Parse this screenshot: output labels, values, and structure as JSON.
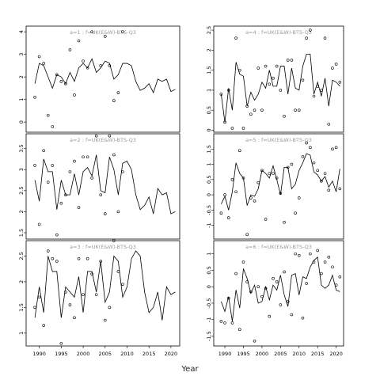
{
  "figure": {
    "xlabel": "Year"
  },
  "chart_data": [
    {
      "type": "line",
      "title": "a=1 :  f=UK(E&W)-BTS-Q3",
      "xlim": [
        1987,
        2022
      ],
      "ylim": [
        -0.45,
        4.25
      ],
      "yticks": [
        0,
        1,
        2,
        3,
        4
      ],
      "xticks": [
        1990,
        1995,
        2000,
        2005,
        2010,
        2015,
        2020
      ],
      "line": {
        "x": [
          1989,
          1990,
          1991,
          1992,
          1993,
          1994,
          1995,
          1996,
          1997,
          1998,
          1999,
          2000,
          2001,
          2002,
          2003,
          2004,
          2005,
          2006,
          2007,
          2008,
          2009,
          2010,
          2011,
          2012,
          2013,
          2014,
          2015,
          2016,
          2017,
          2018,
          2019,
          2020,
          2021
        ],
        "y": [
          1.7,
          2.6,
          2.5,
          2.0,
          1.5,
          2.1,
          2.0,
          1.7,
          2.2,
          1.8,
          2.4,
          2.6,
          2.4,
          2.8,
          2.2,
          2.4,
          2.7,
          2.6,
          1.9,
          2.1,
          2.6,
          2.6,
          2.5,
          1.8,
          1.4,
          1.5,
          1.7,
          1.3,
          1.9,
          1.8,
          1.9,
          1.35,
          1.45
        ]
      },
      "points": {
        "x": [
          1989,
          1990,
          1991,
          1992,
          1993,
          1994,
          1995,
          1996,
          1997,
          1998,
          1999,
          2000,
          2001,
          2002,
          2004,
          2005,
          2006,
          2007,
          2008,
          2009
        ],
        "y": [
          1.1,
          2.9,
          2.6,
          0.3,
          -0.2,
          2.1,
          1.8,
          1.7,
          3.2,
          1.2,
          3.6,
          2.7,
          2.4,
          4.0,
          2.5,
          3.8,
          2.5,
          0.95,
          1.3,
          4.0
        ]
      }
    },
    {
      "type": "line",
      "title": "a=4 :  f=UK(E&W)-BTS-Q3",
      "xlim": [
        1987,
        2022
      ],
      "ylim": [
        -0.05,
        2.6
      ],
      "yticks": [
        0.0,
        0.5,
        1.0,
        1.5,
        2.0,
        2.5
      ],
      "xticks": [
        1990,
        1995,
        2000,
        2005,
        2010,
        2015,
        2020
      ],
      "line": {
        "x": [
          1989,
          1990,
          1991,
          1992,
          1993,
          1994,
          1995,
          1996,
          1997,
          1998,
          1999,
          2000,
          2001,
          2002,
          2003,
          2004,
          2005,
          2006,
          2007,
          2008,
          2009,
          2010,
          2011,
          2012,
          2013,
          2014,
          2015,
          2016,
          2017,
          2018,
          2019,
          2020,
          2021
        ],
        "y": [
          0.9,
          0.2,
          1.05,
          0.5,
          1.7,
          1.4,
          1.35,
          0.6,
          0.95,
          0.75,
          0.9,
          1.2,
          1.05,
          1.5,
          1.1,
          1.1,
          1.6,
          1.6,
          0.9,
          1.55,
          1.05,
          1.0,
          1.6,
          1.9,
          1.9,
          0.9,
          1.2,
          0.85,
          1.3,
          0.6,
          1.25,
          1.2,
          1.1
        ]
      },
      "points": {
        "x": [
          1989,
          1990,
          1991,
          1992,
          1993,
          1994,
          1995,
          1996,
          1997,
          1998,
          1999,
          2000,
          2001,
          2002,
          2003,
          2004,
          2005,
          2006,
          2007,
          2008,
          2009,
          2010,
          2011,
          2012,
          2013,
          2014,
          2015,
          2016,
          2017,
          2018,
          2019,
          2020,
          2021
        ],
        "y": [
          0.9,
          0.2,
          1.0,
          0.05,
          2.3,
          1.5,
          0.05,
          0.6,
          0.4,
          0.5,
          1.55,
          0.5,
          1.6,
          1.15,
          1.3,
          1.6,
          1.0,
          0.35,
          1.75,
          1.75,
          0.5,
          0.5,
          1.25,
          2.3,
          2.5,
          0.85,
          1.1,
          1.0,
          2.3,
          0.15,
          1.55,
          1.65,
          1.2
        ]
      }
    },
    {
      "type": "line",
      "title": "a=2 :  f=UK(E&W)-BTS-Q3",
      "xlim": [
        1987,
        2022
      ],
      "ylim": [
        1.35,
        3.85
      ],
      "yticks": [
        1.5,
        2.0,
        2.5,
        3.0,
        3.5
      ],
      "xticks": [
        1990,
        1995,
        2000,
        2005,
        2010,
        2015,
        2020
      ],
      "line": {
        "x": [
          1989,
          1990,
          1991,
          1992,
          1993,
          1994,
          1995,
          1996,
          1997,
          1998,
          1999,
          2000,
          2001,
          2002,
          2003,
          2004,
          2005,
          2006,
          2007,
          2008,
          2009,
          2010,
          2011,
          2012,
          2013,
          2014,
          2015,
          2016,
          2017,
          2018,
          2019,
          2020,
          2021
        ],
        "y": [
          2.75,
          2.25,
          3.25,
          2.95,
          2.95,
          2.05,
          2.75,
          2.4,
          2.4,
          2.9,
          2.4,
          2.95,
          3.05,
          2.85,
          3.35,
          2.5,
          2.45,
          3.3,
          3.0,
          2.4,
          3.15,
          3.2,
          3.0,
          2.4,
          2.05,
          2.15,
          2.35,
          1.95,
          2.55,
          2.4,
          2.45,
          1.95,
          2.0
        ]
      },
      "points": {
        "x": [
          1989,
          1990,
          1991,
          1992,
          1993,
          1994,
          1995,
          1996,
          1997,
          1998,
          1999,
          2000,
          2001,
          2002,
          2003,
          2004,
          2005,
          2006,
          2007,
          2008,
          2009
        ],
        "y": [
          3.1,
          1.7,
          3.45,
          2.7,
          3.1,
          1.45,
          2.2,
          2.4,
          2.95,
          3.2,
          2.1,
          3.3,
          3.3,
          2.8,
          3.8,
          2.4,
          1.95,
          3.8,
          3.35,
          2.0,
          2.95
        ]
      }
    },
    {
      "type": "line",
      "title": "a=5 :  f=UK(E&W)-BTS-Q3",
      "xlim": [
        1987,
        2022
      ],
      "ylim": [
        -1.45,
        2.0
      ],
      "yticks": [
        -1.0,
        -0.5,
        0.0,
        0.5,
        1.0,
        1.5
      ],
      "xticks": [
        1990,
        1995,
        2000,
        2005,
        2010,
        2015,
        2020
      ],
      "line": {
        "x": [
          1989,
          1990,
          1991,
          1992,
          1993,
          1994,
          1995,
          1996,
          1997,
          1998,
          1999,
          2000,
          2001,
          2002,
          2003,
          2004,
          2005,
          2006,
          2007,
          2008,
          2009,
          2010,
          2011,
          2012,
          2013,
          2014,
          2015,
          2016,
          2017,
          2018,
          2019,
          2020,
          2021
        ],
        "y": [
          -0.3,
          -0.05,
          -0.5,
          0.1,
          1.05,
          0.7,
          0.55,
          -0.35,
          0.0,
          -0.05,
          0.2,
          0.8,
          0.7,
          0.55,
          0.95,
          0.5,
          0.0,
          0.9,
          0.9,
          0.2,
          0.35,
          0.8,
          1.05,
          1.35,
          1.3,
          0.75,
          0.65,
          0.45,
          0.6,
          0.25,
          0.45,
          0.1,
          0.85
        ]
      },
      "points": {
        "x": [
          1989,
          1990,
          1991,
          1992,
          1993,
          1994,
          1995,
          1996,
          1997,
          1998,
          1999,
          2000,
          2001,
          2002,
          2003,
          2004,
          2005,
          2006,
          2007,
          2008,
          2009,
          2010,
          2011,
          2012,
          2013,
          2014,
          2015,
          2016,
          2017,
          2018,
          2019,
          2020,
          2021
        ],
        "y": [
          -0.6,
          0.0,
          -0.75,
          0.5,
          0.1,
          1.45,
          0.55,
          -1.3,
          -0.1,
          -0.2,
          0.4,
          0.8,
          -0.8,
          0.7,
          0.7,
          0.55,
          0.05,
          -0.9,
          0.9,
          1.0,
          -0.6,
          -0.1,
          1.25,
          1.7,
          1.55,
          1.05,
          0.8,
          0.45,
          0.7,
          0.15,
          1.5,
          1.55,
          0.2
        ]
      }
    },
    {
      "type": "line",
      "title": "a=3 :  f=UK(E&W)-BTS-Q3",
      "xlim": [
        1987,
        2022
      ],
      "ylim": [
        0.75,
        2.8
      ],
      "yticks": [
        1.0,
        1.5,
        2.0,
        2.5
      ],
      "xticks": [
        1990,
        1995,
        2000,
        2005,
        2010,
        2015,
        2020
      ],
      "line": {
        "x": [
          1989,
          1990,
          1991,
          1992,
          1993,
          1994,
          1995,
          1996,
          1997,
          1998,
          1999,
          2000,
          2001,
          2002,
          2003,
          2004,
          2005,
          2006,
          2007,
          2008,
          2009,
          2010,
          2011,
          2012,
          2013,
          2014,
          2015,
          2016,
          2017,
          2018,
          2019,
          2020,
          2021
        ],
        "y": [
          1.3,
          1.9,
          1.4,
          2.5,
          2.2,
          2.2,
          1.3,
          1.9,
          1.8,
          1.7,
          2.1,
          1.4,
          2.2,
          2.2,
          1.8,
          2.4,
          1.6,
          1.8,
          2.5,
          2.4,
          1.7,
          1.9,
          2.45,
          2.6,
          2.5,
          1.8,
          1.4,
          1.5,
          1.8,
          1.25,
          1.9,
          1.75,
          1.8
        ]
      },
      "points": {
        "x": [
          1989,
          1990,
          1991,
          1992,
          1993,
          1994,
          1995,
          1996,
          1997,
          1998,
          1999,
          2000,
          2001,
          2002,
          2003,
          2004,
          2005,
          2006,
          2007,
          2008,
          2009
        ],
        "y": [
          1.5,
          1.7,
          1.15,
          2.6,
          2.45,
          2.4,
          0.8,
          1.8,
          1.55,
          1.3,
          2.45,
          1.75,
          2.45,
          2.15,
          1.75,
          2.4,
          1.25,
          1.5,
          2.8,
          2.2,
          1.95
        ]
      }
    },
    {
      "type": "line",
      "title": "a=6 :  f=UK(E&W)-BTS-Q3",
      "xlim": [
        1987,
        2022
      ],
      "ylim": [
        -1.8,
        1.4
      ],
      "yticks": [
        -1.5,
        -1.0,
        -0.5,
        0.0,
        0.5,
        1.0
      ],
      "xticks": [
        1990,
        1995,
        2000,
        2005,
        2010,
        2015,
        2020
      ],
      "line": {
        "x": [
          1989,
          1990,
          1991,
          1992,
          1993,
          1994,
          1995,
          1996,
          1997,
          1998,
          1999,
          2000,
          2001,
          2002,
          2003,
          2004,
          2005,
          2006,
          2007,
          2008,
          2009,
          2010,
          2011,
          2012,
          2013,
          2014,
          2015,
          2016,
          2017,
          2018,
          2019,
          2020,
          2021
        ],
        "y": [
          -0.45,
          -0.75,
          -0.3,
          -1.05,
          -0.1,
          -0.65,
          0.55,
          0.25,
          -0.2,
          0.05,
          -0.5,
          -0.45,
          0.0,
          -0.4,
          0.05,
          -0.1,
          0.35,
          -0.25,
          -0.6,
          0.35,
          0.4,
          -0.25,
          0.3,
          0.25,
          0.6,
          0.8,
          0.9,
          0.05,
          -0.05,
          0.05,
          0.35,
          -0.1,
          -0.15
        ]
      },
      "points": {
        "x": [
          1989,
          1990,
          1991,
          1992,
          1993,
          1994,
          1995,
          1996,
          1997,
          1998,
          1999,
          2000,
          2001,
          2002,
          2003,
          2004,
          2005,
          2006,
          2007,
          2008,
          2009,
          2010,
          2011,
          2012,
          2013,
          2014,
          2015,
          2016,
          2017,
          2018,
          2019,
          2020,
          2021
        ],
        "y": [
          -1.05,
          -1.1,
          -0.35,
          -1.1,
          0.4,
          -1.3,
          0.75,
          0.15,
          -0.15,
          -1.65,
          0.0,
          -0.3,
          -0.05,
          -0.9,
          0.25,
          0.15,
          -0.55,
          0.45,
          -0.45,
          -0.85,
          1.0,
          0.95,
          -0.95,
          0.1,
          1.0,
          0.75,
          1.1,
          0.4,
          0.75,
          0.9,
          0.6,
          0.05,
          0.3
        ]
      }
    }
  ]
}
